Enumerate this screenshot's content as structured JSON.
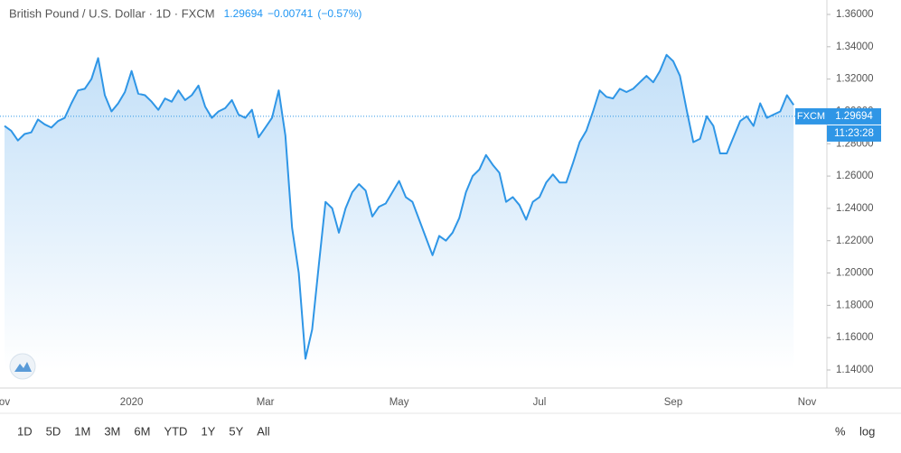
{
  "chart_data": {
    "type": "area",
    "title": "British Pound / U.S. Dollar · 1D · FXCM",
    "last_price": 1.29694,
    "change": "−0.00741",
    "change_pct": "(−0.57%)",
    "source_tag": "FXCM",
    "countdown": "11:23:28",
    "color": "#2f96e6",
    "categories": [
      "ov",
      null,
      null,
      null,
      null,
      null,
      null,
      null,
      null,
      null,
      null,
      null,
      null,
      null,
      null,
      null,
      null,
      null,
      null,
      "2020",
      null,
      null,
      null,
      null,
      null,
      null,
      null,
      null,
      null,
      null,
      null,
      null,
      null,
      null,
      null,
      null,
      null,
      null,
      null,
      "Mar",
      null,
      null,
      null,
      null,
      null,
      null,
      null,
      null,
      null,
      null,
      null,
      null,
      null,
      null,
      null,
      null,
      null,
      null,
      null,
      "May",
      null,
      null,
      null,
      null,
      null,
      null,
      null,
      null,
      null,
      null,
      null,
      null,
      null,
      null,
      null,
      null,
      null,
      null,
      null,
      null,
      "Jul",
      null,
      null,
      null,
      null,
      null,
      null,
      null,
      null,
      null,
      null,
      null,
      null,
      null,
      null,
      null,
      null,
      null,
      null,
      null,
      "Sep",
      null,
      null,
      null,
      null,
      null,
      null,
      null,
      null,
      null,
      null,
      null,
      null,
      null,
      null,
      null,
      null,
      null,
      null,
      null,
      "Nov"
    ],
    "values": [
      1.291,
      1.288,
      1.282,
      1.286,
      1.287,
      1.295,
      1.292,
      1.29,
      1.294,
      1.296,
      1.305,
      1.313,
      1.314,
      1.32,
      1.333,
      1.31,
      1.3,
      1.305,
      1.312,
      1.325,
      1.311,
      1.31,
      1.306,
      1.301,
      1.308,
      1.306,
      1.313,
      1.307,
      1.31,
      1.316,
      1.303,
      1.296,
      1.3,
      1.302,
      1.307,
      1.298,
      1.296,
      1.301,
      1.284,
      1.29,
      1.296,
      1.313,
      1.285,
      1.228,
      1.2,
      1.147,
      1.165,
      1.205,
      1.244,
      1.24,
      1.225,
      1.24,
      1.25,
      1.255,
      1.251,
      1.235,
      1.241,
      1.243,
      1.25,
      1.257,
      1.247,
      1.244,
      1.233,
      1.222,
      1.211,
      1.223,
      1.22,
      1.225,
      1.234,
      1.25,
      1.26,
      1.264,
      1.273,
      1.267,
      1.262,
      1.244,
      1.247,
      1.242,
      1.233,
      1.244,
      1.247,
      1.256,
      1.261,
      1.256,
      1.256,
      1.268,
      1.281,
      1.288,
      1.3,
      1.313,
      1.309,
      1.308,
      1.314,
      1.312,
      1.314,
      1.318,
      1.322,
      1.318,
      1.325,
      1.335,
      1.331,
      1.322,
      1.301,
      1.281,
      1.283,
      1.297,
      1.291,
      1.274,
      1.274,
      1.284,
      1.294,
      1.297,
      1.291,
      1.305,
      1.296,
      1.298,
      1.3,
      1.31,
      1.304,
      null,
      null
    ],
    "ylim": [
      1.14,
      1.36
    ],
    "yticks": [
      {
        "value": 1.14,
        "label": "1.14000"
      },
      {
        "value": 1.16,
        "label": "1.16000"
      },
      {
        "value": 1.18,
        "label": "1.18000"
      },
      {
        "value": 1.2,
        "label": "1.20000"
      },
      {
        "value": 1.22,
        "label": "1.22000"
      },
      {
        "value": 1.24,
        "label": "1.24000"
      },
      {
        "value": 1.26,
        "label": "1.26000"
      },
      {
        "value": 1.28,
        "label": "1.28000"
      },
      {
        "value": 1.3,
        "label": "1.30000"
      },
      {
        "value": 1.32,
        "label": "1.32000"
      },
      {
        "value": 1.34,
        "label": "1.34000"
      },
      {
        "value": 1.36,
        "label": "1.36000"
      }
    ],
    "grid": false
  },
  "toolbar": {
    "ranges": [
      "1D",
      "5D",
      "1M",
      "3M",
      "6M",
      "YTD",
      "1Y",
      "5Y",
      "All"
    ],
    "options": [
      "%",
      "log"
    ]
  }
}
